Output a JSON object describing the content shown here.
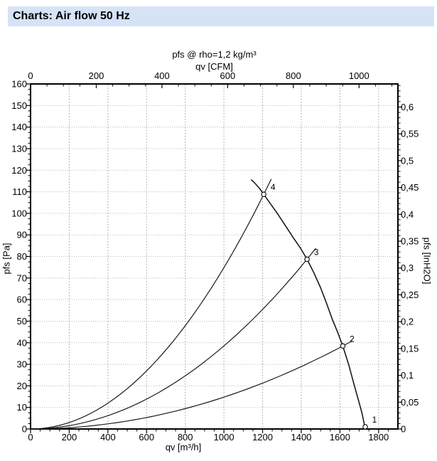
{
  "header": {
    "title": "Charts: Air flow 50 Hz"
  },
  "chart_data": {
    "type": "line",
    "title": "pfs @ rho=1,2 kg/m³",
    "axes": {
      "top": {
        "label": "qv [CFM]",
        "major_ticks": [
          0,
          200,
          400,
          600,
          800,
          1000
        ],
        "minor_step": 50,
        "range": [
          0,
          1118
        ],
        "m3h_per_cfm": 1.699
      },
      "bottom": {
        "label": "qv [m³/h]",
        "major_ticks": [
          0,
          200,
          400,
          600,
          800,
          1000,
          1200,
          1400,
          1600,
          1800
        ],
        "minor_step": 50,
        "range": [
          0,
          1900
        ]
      },
      "left": {
        "label": "pfs [Pa]",
        "range": [
          0,
          160
        ],
        "major_step": 10,
        "minor_step": 2.5
      },
      "right": {
        "label": "pfs [InH2O]",
        "major_tick_labels": [
          "0",
          "0,05",
          "0,1",
          "0,15",
          "0,2",
          "0,25",
          "0,3",
          "0,35",
          "0,4",
          "0,45",
          "0,5",
          "0,55",
          "0,6"
        ],
        "major_step": 0.05,
        "minor_step": 0.01,
        "max": 0.64,
        "pa_per_inh2o": 248.84
      }
    },
    "grid": {
      "vertical_every_m3h": 200,
      "horizontal_every_pa": 10
    },
    "fan_curve": {
      "name": "fan-pressure-curve",
      "points": [
        [
          1143,
          115.5
        ],
        [
          1160,
          114
        ],
        [
          1185,
          111.5
        ],
        [
          1206,
          108.8
        ],
        [
          1240,
          104.5
        ],
        [
          1280,
          99.5
        ],
        [
          1320,
          94
        ],
        [
          1360,
          88.5
        ],
        [
          1395,
          84
        ],
        [
          1430,
          78.7
        ],
        [
          1465,
          72.5
        ],
        [
          1500,
          65.5
        ],
        [
          1530,
          58.5
        ],
        [
          1560,
          51
        ],
        [
          1590,
          44.5
        ],
        [
          1615,
          38.5
        ],
        [
          1645,
          30
        ],
        [
          1675,
          20
        ],
        [
          1700,
          12
        ],
        [
          1715,
          7
        ],
        [
          1731,
          0
        ]
      ]
    },
    "system_curves": [
      {
        "name": "system-curve-to-point-4",
        "k_pa_per_m3h2": 7.48e-05,
        "q_end": 1245
      },
      {
        "name": "system-curve-to-point-3",
        "k_pa_per_m3h2": 3.85e-05,
        "q_end": 1475
      },
      {
        "name": "system-curve-to-point-2",
        "k_pa_per_m3h2": 1.476e-05,
        "q_end": 1665
      }
    ],
    "operating_points": [
      {
        "label": "4",
        "q_m3h": 1206,
        "p_pa": 108.8
      },
      {
        "label": "3",
        "q_m3h": 1430,
        "p_pa": 78.7
      },
      {
        "label": "2",
        "q_m3h": 1615,
        "p_pa": 38.5
      },
      {
        "label": "1",
        "q_m3h": 1731,
        "p_pa": 1
      }
    ],
    "colors": {
      "curve": "#1a1a1a",
      "grid_h": "#b8b8b8",
      "grid_v": "#9e9e9e",
      "frame": "#000000",
      "header_bg": "#d6e3f7",
      "text": "#000000"
    }
  }
}
